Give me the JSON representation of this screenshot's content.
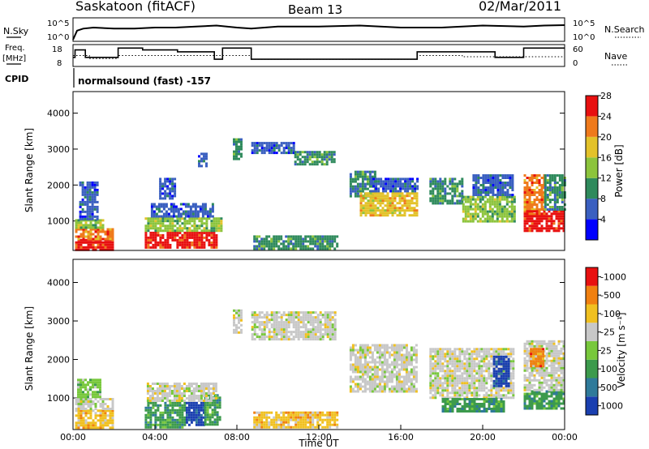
{
  "header": {
    "station": "Saskatoon (fitACF)",
    "beam": "Beam 13",
    "date": "02/Mar/2011"
  },
  "aux": {
    "nsky_label": "N.Sky",
    "nsky_ticks": [
      "10^5",
      "10^0"
    ],
    "nsearch_label": "N.Search",
    "nsearch_ticks": [
      "10^5",
      "10^0"
    ],
    "freq_label_1": "Freq.",
    "freq_label_2": "[MHz]",
    "freq_ticks": [
      "18",
      "8"
    ],
    "nave_label": "Nave",
    "nave_ticks": [
      "60",
      "0"
    ],
    "cpid_label": "CPID",
    "cpid_text": "normalsound (fast) -157"
  },
  "chart_data": [
    {
      "type": "heatmap",
      "name": "power",
      "ylabel": "Slant Range [km]",
      "xlabel": "",
      "yticks": [
        1000,
        2000,
        3000,
        4000
      ],
      "ylim": [
        180,
        4600
      ],
      "xlim_hours": [
        0,
        24
      ],
      "colorbar": {
        "label": "Power [dB]",
        "levels": [
          "4",
          "8",
          "12",
          "16",
          "20",
          "24",
          "28"
        ],
        "colors": [
          "#0000ff",
          "#3a5fc0",
          "#2f8a5c",
          "#8cc43c",
          "#e3c22a",
          "#ef7a1c",
          "#e81010"
        ]
      },
      "regions": [
        {
          "t0": 0.1,
          "t1": 2.0,
          "r0": 200,
          "r1": 500,
          "level": 6
        },
        {
          "t0": 0.1,
          "t1": 2.0,
          "r0": 500,
          "r1": 800,
          "level": 5
        },
        {
          "t0": 0.1,
          "t1": 1.5,
          "r0": 800,
          "r1": 1050,
          "level": 3
        },
        {
          "t0": 0.3,
          "t1": 1.2,
          "r0": 1050,
          "r1": 2100,
          "level": 1
        },
        {
          "t0": 3.5,
          "t1": 7.0,
          "r0": 250,
          "r1": 700,
          "level": 6
        },
        {
          "t0": 3.5,
          "t1": 7.2,
          "r0": 700,
          "r1": 1100,
          "level": 3
        },
        {
          "t0": 3.8,
          "t1": 6.8,
          "r0": 1100,
          "r1": 1500,
          "level": 1
        },
        {
          "t0": 4.2,
          "t1": 5.0,
          "r0": 1600,
          "r1": 2200,
          "level": 1
        },
        {
          "t0": 6.1,
          "t1": 6.5,
          "r0": 2500,
          "r1": 2900,
          "level": 1
        },
        {
          "t0": 7.8,
          "t1": 8.2,
          "r0": 2700,
          "r1": 3300,
          "level": 2
        },
        {
          "t0": 8.8,
          "t1": 12.9,
          "r0": 250,
          "r1": 600,
          "level": 2
        },
        {
          "t0": 8.7,
          "t1": 10.8,
          "r0": 2900,
          "r1": 3200,
          "level": 1
        },
        {
          "t0": 10.8,
          "t1": 12.8,
          "r0": 2550,
          "r1": 2950,
          "level": 2
        },
        {
          "t0": 13.5,
          "t1": 14.8,
          "r0": 1700,
          "r1": 2400,
          "level": 2
        },
        {
          "t0": 14.0,
          "t1": 16.8,
          "r0": 1150,
          "r1": 1800,
          "level": 4
        },
        {
          "t0": 14.5,
          "t1": 16.8,
          "r0": 1800,
          "r1": 2200,
          "level": 1
        },
        {
          "t0": 17.4,
          "t1": 19.0,
          "r0": 1500,
          "r1": 2200,
          "level": 2
        },
        {
          "t0": 19.0,
          "t1": 21.5,
          "r0": 1000,
          "r1": 1700,
          "level": 3
        },
        {
          "t0": 19.5,
          "t1": 21.5,
          "r0": 1700,
          "r1": 2300,
          "level": 1
        },
        {
          "t0": 22.0,
          "t1": 23.0,
          "r0": 1200,
          "r1": 2300,
          "level": 5
        },
        {
          "t0": 22.0,
          "t1": 24.0,
          "r0": 700,
          "r1": 1300,
          "level": 6
        },
        {
          "t0": 23.0,
          "t1": 24.0,
          "r0": 1300,
          "r1": 2300,
          "level": 2
        }
      ]
    },
    {
      "type": "heatmap",
      "name": "velocity",
      "ylabel": "Slant Range [km]",
      "xlabel": "Time UT",
      "yticks": [
        1000,
        2000,
        3000,
        4000
      ],
      "ylim": [
        180,
        4600
      ],
      "xticks": [
        "00:00",
        "04:00",
        "08:00",
        "12:00",
        "16:00",
        "20:00",
        "00:00"
      ],
      "xtick_hours": [
        0,
        4,
        8,
        12,
        16,
        20,
        24
      ],
      "colorbar": {
        "label": "Velocity [m s⁻¹]",
        "levels": [
          "1000",
          "500",
          "100",
          "25",
          "-25",
          "-100",
          "-500",
          "-1000"
        ],
        "colors": [
          "#1a3fb0",
          "#2f7a9a",
          "#3c9a4c",
          "#78c83c",
          "#c8c8c8",
          "#f0c020",
          "#f08010",
          "#e81010"
        ]
      },
      "regions": [
        {
          "t0": 0.1,
          "t1": 2.0,
          "r0": 200,
          "r1": 700,
          "level": 5
        },
        {
          "t0": 0.1,
          "t1": 2.0,
          "r0": 700,
          "r1": 1000,
          "level": 4
        },
        {
          "t0": 0.2,
          "t1": 1.3,
          "r0": 1000,
          "r1": 1500,
          "level": 3
        },
        {
          "t0": 3.5,
          "t1": 5.5,
          "r0": 250,
          "r1": 900,
          "level": 2
        },
        {
          "t0": 5.5,
          "t1": 6.4,
          "r0": 300,
          "r1": 900,
          "level": 0
        },
        {
          "t0": 6.4,
          "t1": 7.2,
          "r0": 300,
          "r1": 1100,
          "level": 2
        },
        {
          "t0": 3.6,
          "t1": 7.0,
          "r0": 900,
          "r1": 1400,
          "level": 4
        },
        {
          "t0": 7.8,
          "t1": 8.2,
          "r0": 2700,
          "r1": 3300,
          "level": 4
        },
        {
          "t0": 8.8,
          "t1": 12.9,
          "r0": 250,
          "r1": 650,
          "level": 5
        },
        {
          "t0": 8.7,
          "t1": 12.8,
          "r0": 2550,
          "r1": 3250,
          "level": 4
        },
        {
          "t0": 13.5,
          "t1": 16.8,
          "r0": 1150,
          "r1": 2400,
          "level": 4
        },
        {
          "t0": 17.4,
          "t1": 21.5,
          "r0": 1000,
          "r1": 2300,
          "level": 4
        },
        {
          "t0": 18.0,
          "t1": 21.0,
          "r0": 650,
          "r1": 1000,
          "level": 2
        },
        {
          "t0": 20.5,
          "t1": 21.3,
          "r0": 1300,
          "r1": 2100,
          "level": 0
        },
        {
          "t0": 22.0,
          "t1": 24.0,
          "r0": 700,
          "r1": 1200,
          "level": 2
        },
        {
          "t0": 22.0,
          "t1": 24.0,
          "r0": 1200,
          "r1": 2500,
          "level": 4
        },
        {
          "t0": 22.3,
          "t1": 22.9,
          "r0": 1800,
          "r1": 2300,
          "level": 6
        }
      ]
    }
  ],
  "series_aux": {
    "nsky_hours": [
      0,
      0.2,
      0.5,
      1.0,
      2.0,
      3.0,
      4.0,
      5.0,
      6.0,
      7.0,
      8.0,
      8.7,
      10.0,
      12.0,
      14.0,
      16.0,
      18.0,
      20.0,
      22.0,
      23.0,
      24.0
    ],
    "nsky_level": [
      0.0,
      0.45,
      0.55,
      0.6,
      0.55,
      0.55,
      0.6,
      0.6,
      0.65,
      0.7,
      0.6,
      0.55,
      0.65,
      0.65,
      0.7,
      0.6,
      0.6,
      0.7,
      0.65,
      0.7,
      0.72
    ],
    "freq_hours": [
      0,
      0.1,
      0.1,
      0.6,
      0.6,
      2.2,
      2.2,
      3.4,
      3.4,
      5.1,
      5.1,
      6.9,
      6.9,
      7.3,
      7.3,
      8.7,
      8.7,
      16.8,
      16.8,
      20.6,
      20.6,
      22.0,
      22.0,
      24.0
    ],
    "freq_mhz": [
      12,
      12,
      16,
      16,
      12,
      12,
      17,
      17,
      16,
      16,
      15,
      15,
      11,
      11,
      17,
      17,
      11,
      11,
      15,
      15,
      12,
      12,
      17,
      17
    ],
    "nave_hours": [
      0,
      0.8,
      0.8,
      2.2,
      2.2,
      8.7,
      8.7,
      12.0,
      12.0,
      16.8,
      16.8,
      19.0,
      19.0,
      24.0
    ],
    "nave_count": [
      30,
      30,
      20,
      20,
      30,
      30,
      18,
      18,
      18,
      18,
      30,
      30,
      26,
      26
    ]
  }
}
